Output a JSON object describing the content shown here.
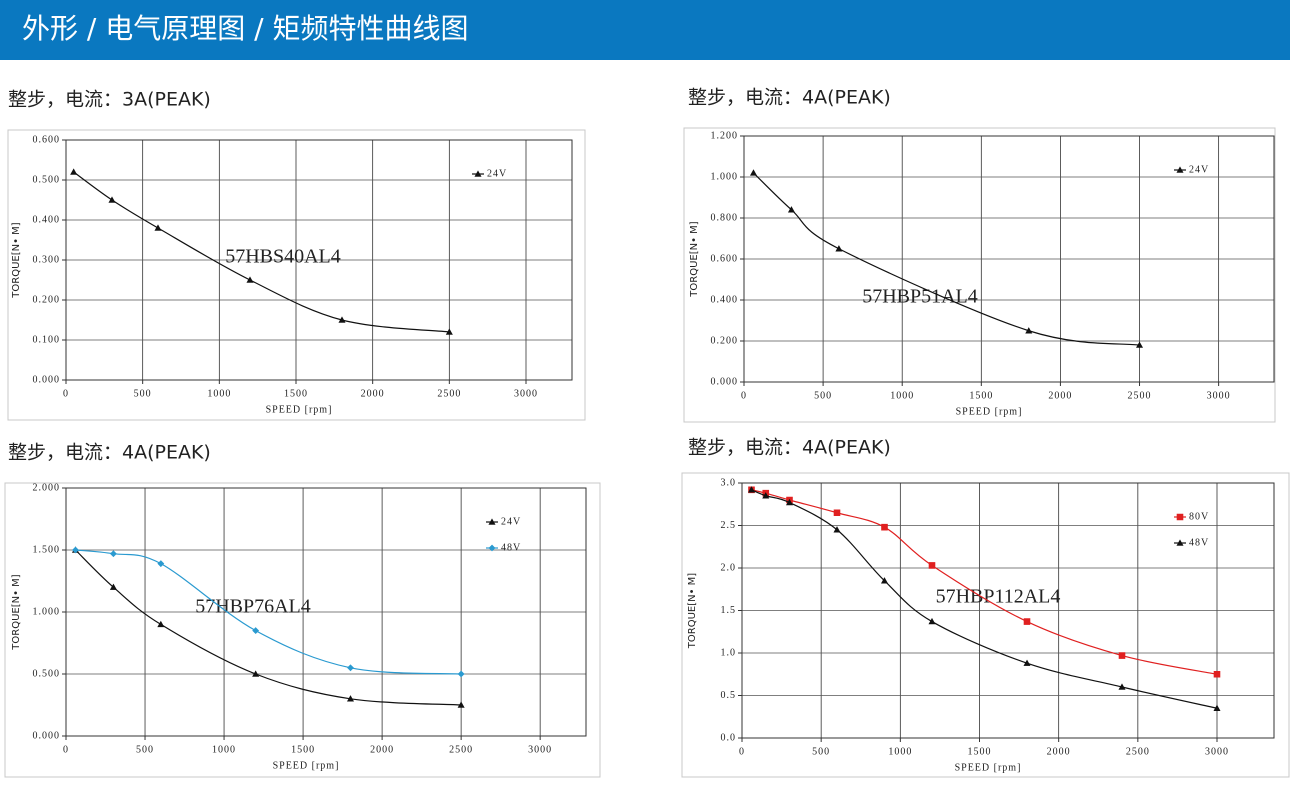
{
  "header": {
    "title": "外形 / 电气原理图 / 矩频特性曲线图"
  },
  "chart_data": [
    {
      "type": "line",
      "title": "整步，电流：3A(PEAK)",
      "annotation": "57HBS40AL4",
      "x_label": "SPEED [rpm]",
      "y_label": "TORQUE[N• M]",
      "x": [
        50,
        300,
        600,
        1200,
        1800,
        2500
      ],
      "series": [
        {
          "name": "24V",
          "color": "#111111",
          "marker": "triangle",
          "values": [
            0.52,
            0.45,
            0.38,
            0.25,
            0.15,
            0.12
          ]
        }
      ],
      "xlim": [
        0,
        3300
      ],
      "ylim": [
        0,
        0.6
      ],
      "xticks": [
        0,
        500,
        1000,
        1500,
        2000,
        2500,
        3000
      ],
      "yticks": [
        {
          "value": 0,
          "label": "0.000"
        },
        {
          "value": 0.1,
          "label": "0.100"
        },
        {
          "value": 0.2,
          "label": "0.200"
        },
        {
          "value": 0.3,
          "label": "0.300"
        },
        {
          "value": 0.4,
          "label": "0.400"
        },
        {
          "value": 0.5,
          "label": "0.500"
        },
        {
          "value": 0.6,
          "label": "0.600"
        }
      ],
      "grid": true,
      "legend": "upper right"
    },
    {
      "type": "line",
      "title": "整步，电流：4A(PEAK)",
      "annotation": "57HBP51AL4",
      "x_label": "SPEED [rpm]",
      "y_label": "TORQUE[N• M]",
      "x": [
        60,
        300,
        600,
        1800,
        2500
      ],
      "series": [
        {
          "name": "24V",
          "color": "#111111",
          "marker": "triangle",
          "values": [
            1.02,
            0.84,
            0.65,
            0.25,
            0.18
          ]
        }
      ],
      "xlim": [
        0,
        3350
      ],
      "ylim": [
        0,
        1.2
      ],
      "xticks": [
        0,
        500,
        1000,
        1500,
        2000,
        2500,
        3000
      ],
      "yticks": [
        {
          "value": 0,
          "label": "0.000"
        },
        {
          "value": 0.2,
          "label": "0.200"
        },
        {
          "value": 0.4,
          "label": "0.400"
        },
        {
          "value": 0.6,
          "label": "0.600"
        },
        {
          "value": 0.8,
          "label": "0.800"
        },
        {
          "value": 1,
          "label": "1.000"
        },
        {
          "value": 1.2,
          "label": "1.200"
        }
      ],
      "grid": true,
      "legend": "upper right"
    },
    {
      "type": "line",
      "title": "整步，电流：4A(PEAK)",
      "annotation": "57HBP76AL4",
      "x_label": "SPEED [rpm]",
      "y_label": "TORQUE[N• M]",
      "x": [
        60,
        300,
        600,
        1200,
        1800,
        2500
      ],
      "series": [
        {
          "name": "24V",
          "color": "#111111",
          "marker": "triangle",
          "values": [
            1.5,
            1.2,
            0.9,
            0.5,
            0.3,
            0.25
          ]
        },
        {
          "name": "48V",
          "color": "#2a9ad0",
          "marker": "diamond",
          "values": [
            1.5,
            1.47,
            1.39,
            0.85,
            0.55,
            0.5
          ]
        }
      ],
      "xlim": [
        0,
        3290
      ],
      "ylim": [
        0,
        2
      ],
      "xticks": [
        0,
        500,
        1000,
        1500,
        2000,
        2500,
        3000
      ],
      "yticks": [
        {
          "value": 0,
          "label": "0.000"
        },
        {
          "value": 0.5,
          "label": "0.500"
        },
        {
          "value": 1,
          "label": "1.000"
        },
        {
          "value": 1.5,
          "label": "1.500"
        },
        {
          "value": 2,
          "label": "2.000"
        }
      ],
      "grid": true,
      "legend": "upper right"
    },
    {
      "type": "line",
      "title": "整步，电流：4A(PEAK)",
      "annotation": "57HBP112AL4",
      "x_label": "SPEED [rpm]",
      "y_label": "TORQUE[N• M]",
      "x": [
        60,
        150,
        300,
        600,
        900,
        1200,
        1800,
        2400,
        3000
      ],
      "series": [
        {
          "name": "80V",
          "color": "#e02020",
          "marker": "square",
          "values": [
            2.92,
            2.88,
            2.8,
            2.65,
            2.48,
            2.03,
            1.37,
            0.97,
            0.75
          ]
        },
        {
          "name": "48V",
          "color": "#111111",
          "marker": "triangle",
          "values": [
            2.92,
            2.85,
            2.77,
            2.45,
            1.85,
            1.37,
            0.88,
            0.6,
            0.35
          ]
        }
      ],
      "xlim": [
        0,
        3360
      ],
      "ylim": [
        0,
        3
      ],
      "xticks": [
        0,
        500,
        1000,
        1500,
        2000,
        2500,
        3000
      ],
      "yticks": [
        {
          "value": 0,
          "label": "0.0"
        },
        {
          "value": 0.5,
          "label": "0.5"
        },
        {
          "value": 1,
          "label": "1.0"
        },
        {
          "value": 1.5,
          "label": "1.5"
        },
        {
          "value": 2,
          "label": "2.0"
        },
        {
          "value": 2.5,
          "label": "2.5"
        },
        {
          "value": 3,
          "label": "3.0"
        }
      ],
      "grid": true,
      "legend": "upper right"
    }
  ]
}
